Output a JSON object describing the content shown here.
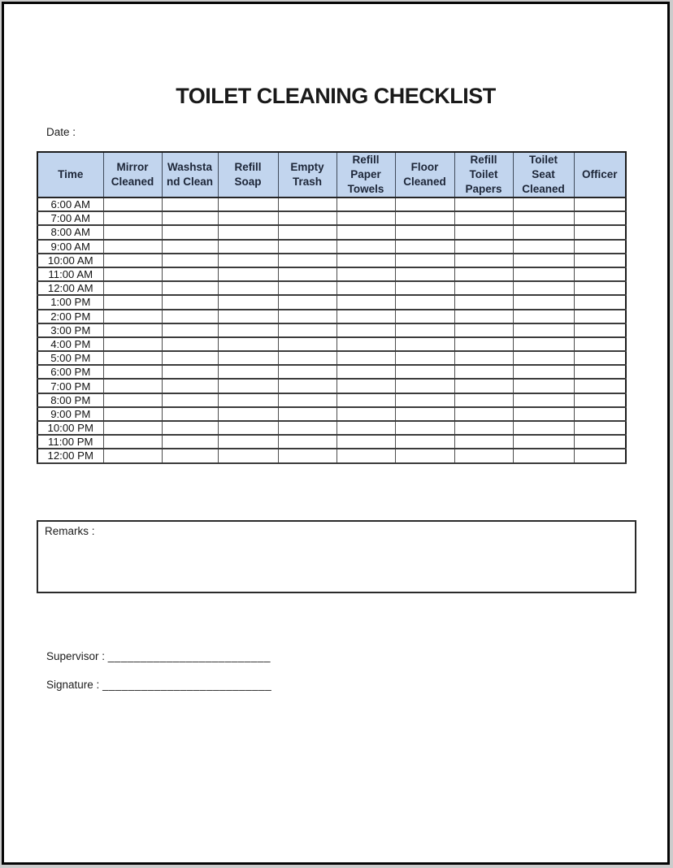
{
  "header": {
    "title": "TOILET CLEANING CHECKLIST",
    "date_label": "Date :"
  },
  "table": {
    "columns": [
      "Time",
      "Mirror\nCleaned",
      "Washsta\nnd Clean",
      "Refill\nSoap",
      "Empty\nTrash",
      "Refill\nPaper\nTowels",
      "Floor\nCleaned",
      "Refill\nToilet\nPapers",
      "Toilet\nSeat\nCleaned",
      "Officer"
    ],
    "rows": [
      "6:00 AM",
      "7:00 AM",
      "8:00 AM",
      "9:00 AM",
      "10:00 AM",
      "11:00 AM",
      "12:00 AM",
      "1:00 PM",
      "2:00 PM",
      "3:00 PM",
      "4:00 PM",
      "5:00 PM",
      "6:00 PM",
      "7:00 PM",
      "8:00 PM",
      "9:00 PM",
      "10:00 PM",
      "11:00 PM",
      "12:00 PM"
    ]
  },
  "remarks": {
    "label": "Remarks :"
  },
  "footer": {
    "supervisor_label": "Supervisor :",
    "supervisor_blank": "_________________________",
    "signature_label": "Signature :",
    "signature_blank": "__________________________"
  },
  "colors": {
    "header_bg": "#C2D5EE",
    "grid_line": "#3B3B3B",
    "page_border": "#050505",
    "header_text": "#1D2638"
  }
}
